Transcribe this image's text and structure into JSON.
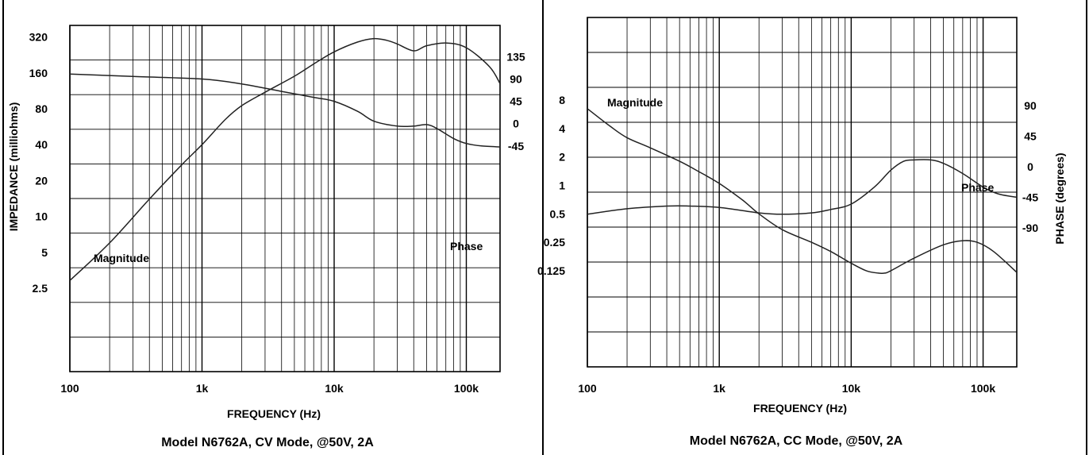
{
  "chart_data": [
    {
      "type": "line",
      "title": "Model N6762A, CV Mode, @50V, 2A",
      "xlabel": "FREQUENCY (Hz)",
      "ylabel": "IMPEDANCE (milliohms)",
      "y2label": "",
      "x_scale": "log",
      "xlim": [
        100,
        180000
      ],
      "y_scale": "log",
      "ylim": [
        0.5,
        400
      ],
      "y2lim": [
        -500,
        198
      ],
      "x_ticks": [
        {
          "value": 100,
          "label": "100"
        },
        {
          "value": 1000,
          "label": "1k"
        },
        {
          "value": 10000,
          "label": "10k"
        },
        {
          "value": 100000,
          "label": "100k"
        }
      ],
      "y_ticks": [
        {
          "value": 320,
          "label": "320"
        },
        {
          "value": 160,
          "label": "160"
        },
        {
          "value": 80,
          "label": "80"
        },
        {
          "value": 40,
          "label": "40"
        },
        {
          "value": 20,
          "label": "20"
        },
        {
          "value": 10,
          "label": "10"
        },
        {
          "value": 5,
          "label": "5"
        },
        {
          "value": 2.5,
          "label": "2.5"
        }
      ],
      "y2_ticks": [
        {
          "value": 135,
          "label": "135"
        },
        {
          "value": 90,
          "label": "90"
        },
        {
          "value": 45,
          "label": "45"
        },
        {
          "value": 0,
          "label": "0"
        },
        {
          "value": -45,
          "label": "-45"
        }
      ],
      "grid": true,
      "annotations": [
        {
          "text": "Magnitude",
          "x": 150,
          "y": 2.8
        },
        {
          "text": "Phase",
          "x": 110000,
          "y": 3.5
        }
      ],
      "series": [
        {
          "name": "Magnitude",
          "axis": "y",
          "x": [
            100,
            200,
            400,
            700,
            1000,
            1500,
            2000,
            3000,
            5000,
            7000,
            10000,
            15000,
            20000,
            25000,
            30000,
            40000,
            50000,
            70000,
            100000,
            150000,
            180000
          ],
          "y": [
            2.9,
            6,
            14,
            27,
            40,
            65,
            85,
            110,
            150,
            190,
            240,
            290,
            310,
            300,
            280,
            245,
            270,
            285,
            260,
            180,
            130
          ]
        },
        {
          "name": "Phase",
          "axis": "y2",
          "x": [
            100,
            300,
            1000,
            2000,
            4000,
            7000,
            10000,
            15000,
            20000,
            30000,
            40000,
            50000,
            60000,
            80000,
            100000,
            130000,
            180000
          ],
          "y": [
            100,
            95,
            90,
            80,
            65,
            53,
            45,
            25,
            5,
            -5,
            -5,
            -2,
            -10,
            -30,
            -40,
            -45,
            -47
          ]
        }
      ]
    },
    {
      "type": "line",
      "title": "Model N6762A, CC Mode, @50V, 2A",
      "xlabel": "FREQUENCY (Hz)",
      "ylabel": "",
      "y2label": "PHASE (degrees)",
      "x_scale": "log",
      "xlim": [
        100,
        180000
      ],
      "y_scale": "log",
      "ylim": [
        0.012,
        60
      ],
      "y2lim": [
        -295,
        220
      ],
      "x_ticks": [
        {
          "value": 100,
          "label": "100"
        },
        {
          "value": 1000,
          "label": "1k"
        },
        {
          "value": 10000,
          "label": "10k"
        },
        {
          "value": 100000,
          "label": "100k"
        }
      ],
      "y_ticks": [
        {
          "value": 8,
          "label": "8"
        },
        {
          "value": 4,
          "label": "4"
        },
        {
          "value": 2,
          "label": "2"
        },
        {
          "value": 1,
          "label": "1"
        },
        {
          "value": 0.5,
          "label": "0.5"
        },
        {
          "value": 0.25,
          "label": "0.25"
        },
        {
          "value": 0.125,
          "label": "0.125"
        }
      ],
      "y2_ticks": [
        {
          "value": 90,
          "label": "90"
        },
        {
          "value": 45,
          "label": "45"
        },
        {
          "value": 0,
          "label": "0"
        },
        {
          "value": -45,
          "label": "-45"
        },
        {
          "value": -90,
          "label": "-90"
        }
      ],
      "grid": true,
      "annotations": [
        {
          "text": "Magnitude",
          "x": 140,
          "y": 6
        },
        {
          "text": "Phase",
          "x": 90000,
          "y": 1.1
        }
      ],
      "series": [
        {
          "name": "Magnitude",
          "axis": "y",
          "x": [
            100,
            150,
            200,
            300,
            500,
            700,
            1000,
            1500,
            2000,
            3000,
            5000,
            7000,
            10000,
            13000,
            16000,
            18000,
            20000,
            30000,
            50000,
            70000,
            90000,
            120000,
            180000
          ],
          "y": [
            6.5,
            4.2,
            3.2,
            2.5,
            1.8,
            1.4,
            1.05,
            0.7,
            0.5,
            0.34,
            0.25,
            0.2,
            0.15,
            0.125,
            0.118,
            0.118,
            0.125,
            0.17,
            0.235,
            0.26,
            0.25,
            0.2,
            0.12
          ]
        },
        {
          "name": "Phase",
          "axis": "y2",
          "x": [
            100,
            200,
            400,
            600,
            1000,
            2000,
            3000,
            5000,
            7000,
            10000,
            15000,
            20000,
            25000,
            30000,
            40000,
            50000,
            70000,
            100000,
            130000,
            180000
          ],
          "y": [
            -70,
            -62,
            -58,
            -58,
            -60,
            -68,
            -70,
            -68,
            -63,
            -55,
            -30,
            -5,
            8,
            10,
            10,
            5,
            -10,
            -30,
            -40,
            -45
          ]
        }
      ]
    }
  ]
}
